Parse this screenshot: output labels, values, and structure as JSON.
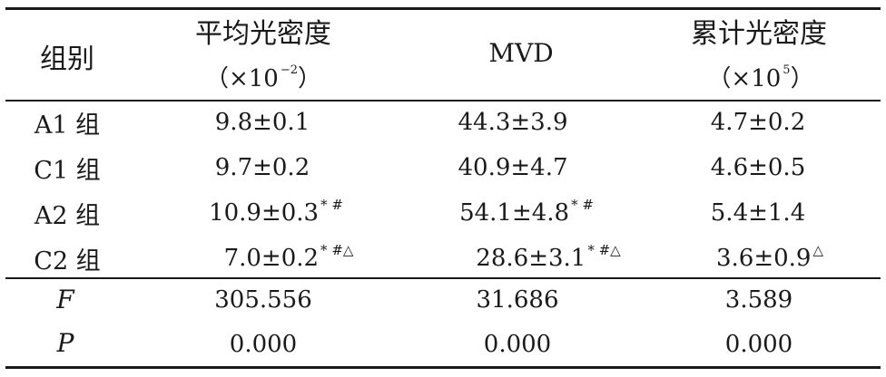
{
  "table": {
    "header": {
      "group": "组别",
      "avg_od": "平均光密度",
      "avg_od_unit": "（×10",
      "avg_od_exp": "−2",
      "avg_od_close": "）",
      "mvd": "MVD",
      "cum_od": "累计光密度",
      "cum_od_unit": "（×10",
      "cum_od_exp": "5",
      "cum_od_close": "）"
    },
    "rows": [
      {
        "group": "A1 组",
        "avg_od": "9.8±0.1",
        "avg_od_mark": "",
        "mvd": "44.3±3.9",
        "mvd_mark": "",
        "cum_od": "4.7±0.2",
        "cum_od_mark": ""
      },
      {
        "group": "C1 组",
        "avg_od": "9.7±0.2",
        "avg_od_mark": "",
        "mvd": "40.9±4.7",
        "mvd_mark": "",
        "cum_od": "4.6±0.5",
        "cum_od_mark": ""
      },
      {
        "group": "A2 组",
        "avg_od": "10.9±0.3",
        "avg_od_mark": "* #",
        "mvd": "54.1±4.8",
        "mvd_mark": "* #",
        "cum_od": "5.4±1.4",
        "cum_od_mark": ""
      },
      {
        "group": "C2 组",
        "avg_od": "7.0±0.2",
        "avg_od_mark": "* #△",
        "mvd": "28.6±3.1",
        "mvd_mark": "* #△",
        "cum_od": "3.6±0.9",
        "cum_od_mark": "△"
      }
    ],
    "stats": [
      {
        "label": "F",
        "avg_od": "305.556",
        "mvd": "31.686",
        "cum_od": "3.589"
      },
      {
        "label": "P",
        "avg_od": "0.000",
        "mvd": "0.000",
        "cum_od": "0.000"
      }
    ]
  }
}
